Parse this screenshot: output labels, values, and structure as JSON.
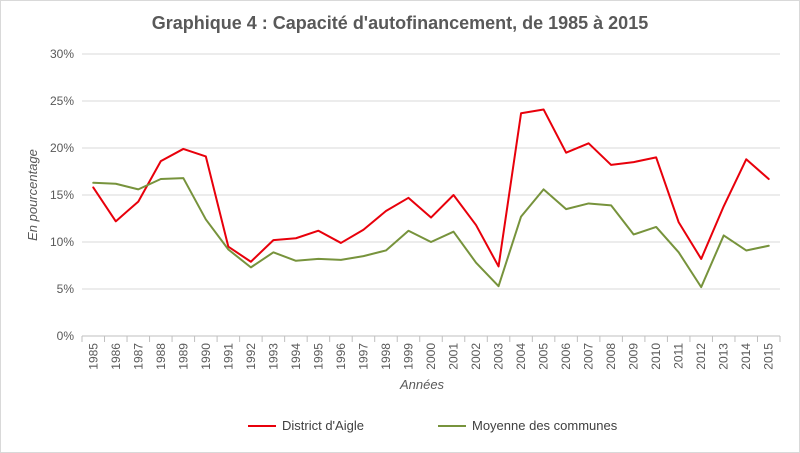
{
  "chart_data": {
    "type": "line",
    "title": "Graphique 4 : Capacité d'autofinancement, de 1985 à 2015",
    "xlabel": "Années",
    "ylabel": "En pourcentage",
    "ylim": [
      0,
      30
    ],
    "y_ticks": [
      "0%",
      "5%",
      "10%",
      "15%",
      "20%",
      "25%",
      "30%"
    ],
    "grid": "horizontal",
    "legend_position": "bottom",
    "categories": [
      "1985",
      "1986",
      "1987",
      "1988",
      "1989",
      "1990",
      "1991",
      "1992",
      "1993",
      "1994",
      "1995",
      "1996",
      "1997",
      "1998",
      "1999",
      "2000",
      "2001",
      "2002",
      "2003",
      "2004",
      "2005",
      "2006",
      "2007",
      "2008",
      "2009",
      "2010",
      "2011",
      "2012",
      "2013",
      "2014",
      "2015"
    ],
    "series": [
      {
        "name": "District d'Aigle",
        "color": "#e8000b",
        "values": [
          15.8,
          12.2,
          14.3,
          18.6,
          19.9,
          19.1,
          9.5,
          7.9,
          10.2,
          10.4,
          11.2,
          9.9,
          11.3,
          13.3,
          14.7,
          12.6,
          15.0,
          11.8,
          7.4,
          23.7,
          24.1,
          19.5,
          20.5,
          18.2,
          18.5,
          19.0,
          12.1,
          8.2,
          13.8,
          18.8,
          16.7
        ]
      },
      {
        "name": "Moyenne des communes",
        "color": "#77933c",
        "values": [
          16.3,
          16.2,
          15.6,
          16.7,
          16.8,
          12.4,
          9.2,
          7.3,
          8.9,
          8.0,
          8.2,
          8.1,
          8.5,
          9.1,
          11.2,
          10.0,
          11.1,
          7.8,
          5.3,
          12.7,
          15.6,
          13.5,
          14.1,
          13.9,
          10.8,
          11.6,
          8.9,
          5.2,
          10.7,
          9.1,
          9.6
        ]
      }
    ]
  }
}
